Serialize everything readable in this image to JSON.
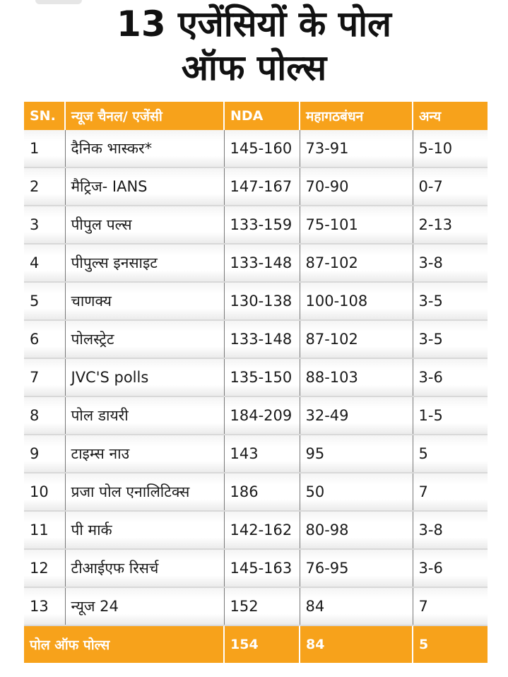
{
  "title": {
    "line1": "13 एजेंसियों के पोल",
    "line2": "ऑफ पोल्स"
  },
  "table": {
    "headers": [
      "SN.",
      "न्यूज चैनल/ एजेंसी",
      "NDA",
      "महागठबंधन",
      "अन्य"
    ],
    "rows": [
      [
        "1",
        "दैनिक भास्कर*",
        "145-160",
        "73-91",
        "5-10"
      ],
      [
        "2",
        "मैट्रिज- IANS",
        "147-167",
        "70-90",
        "0-7"
      ],
      [
        "3",
        "पीपुल पल्स",
        "133-159",
        "75-101",
        "2-13"
      ],
      [
        "4",
        "पीपुल्स इनसाइट",
        "133-148",
        "87-102",
        "3-8"
      ],
      [
        "5",
        "चाणक्य",
        "130-138",
        "100-108",
        "3-5"
      ],
      [
        "6",
        "पोलस्ट्रेट",
        "133-148",
        "87-102",
        "3-5"
      ],
      [
        "7",
        "JVC'S polls",
        "135-150",
        "88-103",
        "3-6"
      ],
      [
        "8",
        "पोल डायरी",
        "184-209",
        "32-49",
        "1-5"
      ],
      [
        "9",
        "टाइम्स नाउ",
        "143",
        "95",
        "5"
      ],
      [
        "10",
        "प्रजा पोल एनालिटिक्स",
        "186",
        "50",
        "7"
      ],
      [
        "11",
        "पी मार्क",
        "142-162",
        "80-98",
        "3-8"
      ],
      [
        "12",
        "टीआईएफ रिसर्च",
        "145-163",
        "76-95",
        "3-6"
      ],
      [
        "13",
        "न्यूज 24",
        "152",
        "84",
        "7"
      ]
    ],
    "footer": {
      "label": "पोल ऑफ पोल्स",
      "nda": "154",
      "mahagathbandhan": "84",
      "others": "5"
    }
  },
  "colors": {
    "header_bg": "#f7a21b",
    "header_text": "#ffffff"
  }
}
